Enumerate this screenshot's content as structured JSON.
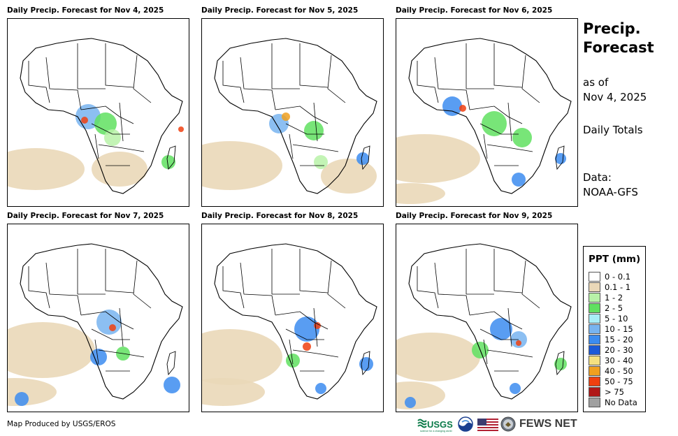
{
  "panels": [
    {
      "title": "Daily Precip. Forecast for Nov 4, 2025"
    },
    {
      "title": "Daily Precip. Forecast for Nov 5, 2025"
    },
    {
      "title": "Daily Precip. Forecast for Nov 6, 2025"
    },
    {
      "title": "Daily Precip. Forecast for Nov 7, 2025"
    },
    {
      "title": "Daily Precip. Forecast for Nov 8, 2025"
    },
    {
      "title": "Daily Precip. Forecast for Nov 9, 2025"
    }
  ],
  "side": {
    "title_line1": "Precip.",
    "title_line2": "Forecast",
    "as_of_line1": "as of",
    "as_of_line2": "Nov 4, 2025",
    "totals": "Daily Totals",
    "data_line1": "Data:",
    "data_line2": "NOAA-GFS"
  },
  "legend": {
    "title": "PPT (mm)",
    "items": [
      {
        "label": "0 - 0.1",
        "color": "#ffffff"
      },
      {
        "label": "0.1 - 1",
        "color": "#ead8b8"
      },
      {
        "label": "1 - 2",
        "color": "#b8f2a8"
      },
      {
        "label": "2 - 5",
        "color": "#60e060"
      },
      {
        "label": "5 - 10",
        "color": "#a8eef8"
      },
      {
        "label": "10 - 15",
        "color": "#78b4f0"
      },
      {
        "label": "15 - 20",
        "color": "#3c8cf0"
      },
      {
        "label": "20 - 30",
        "color": "#1c5ad8"
      },
      {
        "label": "30 - 40",
        "color": "#f4e080"
      },
      {
        "label": "40 - 50",
        "color": "#f0a020"
      },
      {
        "label": "50 - 75",
        "color": "#f04010"
      },
      {
        "label": "> 75",
        "color": "#b01818"
      },
      {
        "label": "No Data",
        "color": "#a0a0a0"
      }
    ]
  },
  "credit": "Map Produced by USGS/EROS",
  "logos": {
    "usgs": "USGS",
    "usgs_tagline": "science for a changing world",
    "fewsnet": "FEWS NET"
  }
}
